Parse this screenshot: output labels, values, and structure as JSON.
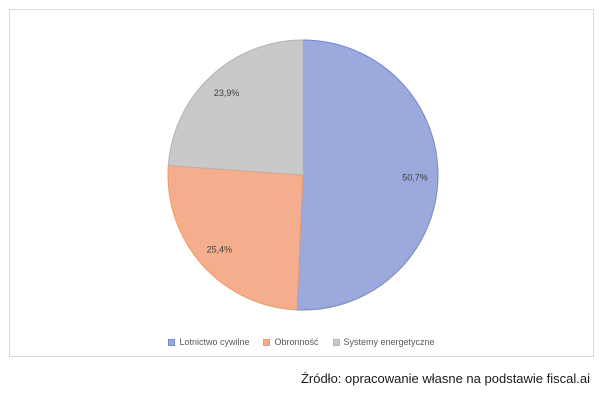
{
  "chart_data": {
    "type": "pie",
    "title": "",
    "start_angle_deg": 0,
    "direction": "clockwise",
    "legend_position": "bottom",
    "value_unit": "percent",
    "slices": [
      {
        "label": "Lotnictwo cywilne",
        "value": 50.7,
        "display": "50,7%",
        "fill": "#9BA9DC",
        "stroke": "#7687CE"
      },
      {
        "label": "Obronność",
        "value": 25.4,
        "display": "25,4%",
        "fill": "#F5AE8D",
        "stroke": "#EE9864"
      },
      {
        "label": "Systemy energetyczne",
        "value": 23.9,
        "display": "23,9%",
        "fill": "#C9C9C9",
        "stroke": "#B3B3B3"
      }
    ]
  },
  "source_note": "Źródło: opracowanie własne na podstawie fiscal.ai"
}
